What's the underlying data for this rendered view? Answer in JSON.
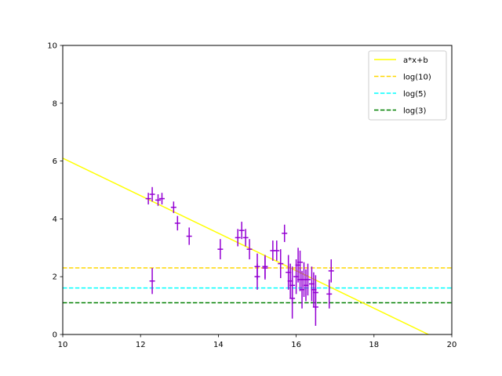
{
  "chart_data": {
    "type": "scatter",
    "title": "",
    "xlabel": "",
    "ylabel": "",
    "xlim": [
      10,
      20
    ],
    "ylim": [
      0,
      10
    ],
    "x_ticks": [
      "10",
      "12",
      "14",
      "16",
      "18",
      "20"
    ],
    "y_ticks": [
      "0",
      "2",
      "4",
      "6",
      "8",
      "10"
    ],
    "grid": false,
    "legend_position": "top-right",
    "series": [
      {
        "name": "a*x+b",
        "kind": "line",
        "color": "#ffff00",
        "x": [
          10,
          19.4
        ],
        "y": [
          6.1,
          0
        ]
      },
      {
        "name": "log(10)",
        "kind": "hline",
        "color": "#ffd700",
        "y": 2.303
      },
      {
        "name": "log(5)",
        "kind": "hline",
        "color": "#00ffff",
        "y": 1.609
      },
      {
        "name": "log(3)",
        "kind": "hline",
        "color": "#008000",
        "y": 1.099
      }
    ],
    "points": {
      "color": "#9400d3",
      "x": [
        12.2,
        12.3,
        12.3,
        12.45,
        12.55,
        12.85,
        12.95,
        13.25,
        14.05,
        14.5,
        14.6,
        14.7,
        14.8,
        15.0,
        15.0,
        15.2,
        15.2,
        15.4,
        15.5,
        15.6,
        15.7,
        15.8,
        15.85,
        15.9,
        15.9,
        16.0,
        16.05,
        16.1,
        16.1,
        16.15,
        16.2,
        16.25,
        16.3,
        16.4,
        16.45,
        16.5,
        16.5,
        16.85,
        16.9
      ],
      "y": [
        4.7,
        1.85,
        4.85,
        4.65,
        4.7,
        4.4,
        3.85,
        3.4,
        2.95,
        3.35,
        3.6,
        3.35,
        2.95,
        2.35,
        2.0,
        2.3,
        2.35,
        2.9,
        2.9,
        2.45,
        3.5,
        2.15,
        1.85,
        1.7,
        1.25,
        2.0,
        2.4,
        2.5,
        1.9,
        1.55,
        1.9,
        1.7,
        1.9,
        1.75,
        1.55,
        1.45,
        0.95,
        1.4,
        2.2
      ],
      "yerr": [
        0.2,
        0.45,
        0.25,
        0.2,
        0.2,
        0.2,
        0.25,
        0.3,
        0.35,
        0.3,
        0.3,
        0.3,
        0.35,
        0.45,
        0.45,
        0.4,
        0.4,
        0.35,
        0.35,
        0.5,
        0.3,
        0.6,
        0.6,
        0.65,
        0.7,
        0.6,
        0.6,
        0.4,
        0.4,
        0.65,
        0.6,
        0.55,
        0.55,
        0.6,
        0.6,
        0.6,
        0.65,
        0.5,
        0.4
      ]
    }
  }
}
